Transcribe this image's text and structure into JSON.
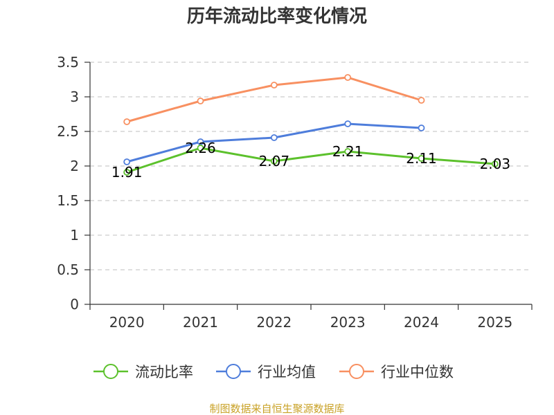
{
  "chart_data": {
    "type": "line",
    "title": "历年流动比率变化情况",
    "categories": [
      "2020",
      "2021",
      "2022",
      "2023",
      "2024",
      "2025"
    ],
    "ylim": [
      0,
      3.5
    ],
    "yticks": [
      0,
      0.5,
      1,
      1.5,
      2,
      2.5,
      3,
      3.5
    ],
    "ytick_labels": [
      "0",
      "0.5",
      "1",
      "1.5",
      "2",
      "2.5",
      "3",
      "3.5"
    ],
    "grid": true,
    "legend_position": "bottom",
    "series": [
      {
        "name": "流动比率",
        "color": "#5cc12c",
        "values": [
          1.91,
          2.26,
          2.07,
          2.21,
          2.11,
          2.03
        ],
        "data_labels": [
          "1.91",
          "2.26",
          "2.07",
          "2.21",
          "2.11",
          "2.03"
        ]
      },
      {
        "name": "行业均值",
        "color": "#4e7ddb",
        "values": [
          2.06,
          2.35,
          2.41,
          2.61,
          2.55,
          null
        ]
      },
      {
        "name": "行业中位数",
        "color": "#f89061",
        "values": [
          2.64,
          2.94,
          3.17,
          3.28,
          2.95,
          null
        ]
      }
    ],
    "source": "制图数据来自恒生聚源数据库",
    "source_color": "#c9a227"
  }
}
